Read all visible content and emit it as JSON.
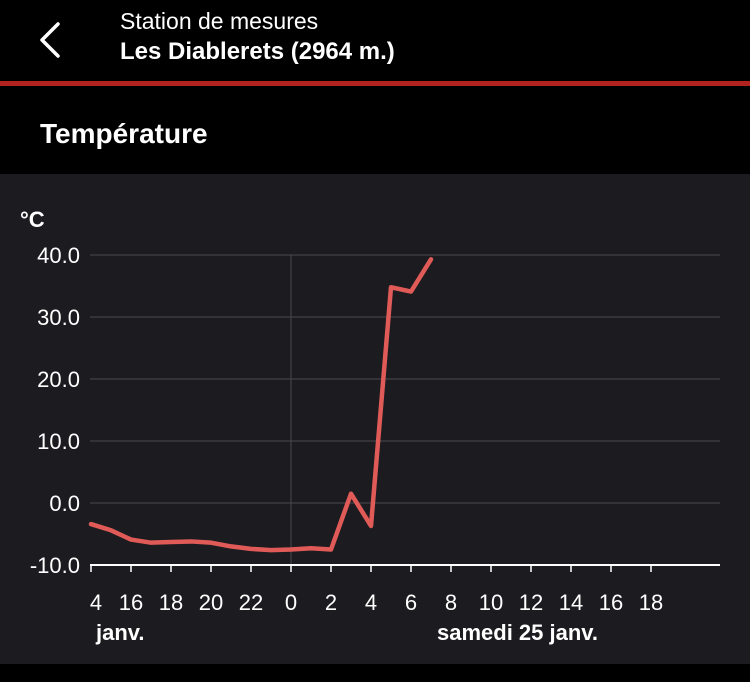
{
  "header": {
    "back_icon": "chevron-left-icon",
    "subtitle": "Station de mesures",
    "title": "Les Diablerets (2964 m.)"
  },
  "section": {
    "title": "Température"
  },
  "colors": {
    "accent": "#b2221f",
    "series": "#e05b58",
    "panel": "#1c1b1f",
    "background": "#000000"
  },
  "chart_data": {
    "type": "line",
    "title": "",
    "xlabel": "",
    "ylabel": "°C",
    "ylim": [
      -10,
      40
    ],
    "yticks": [
      "-10.0",
      "0.0",
      "10.0",
      "20.0",
      "30.0",
      "40.0"
    ],
    "grid": true,
    "x_tick_labels": [
      "4",
      "16",
      "18",
      "20",
      "22",
      "0",
      "2",
      "4",
      "6",
      "8",
      "10",
      "12",
      "14",
      "16",
      "18"
    ],
    "date_labels": [
      "janv.",
      "samedi 25 janv."
    ],
    "series": [
      {
        "x_hours": [
          -10,
          -9,
          -8,
          -7,
          -6,
          -5,
          -4,
          -3,
          -2,
          -1,
          0,
          1,
          2,
          3,
          4,
          5,
          6,
          7
        ],
        "values": [
          -3.4,
          -4.4,
          -5.9,
          -6.4,
          -6.3,
          -6.2,
          -6.4,
          -7.0,
          -7.4,
          -7.6,
          -7.5,
          -7.3,
          -7.5,
          1.5,
          -3.7,
          34.8,
          34.1,
          39.3
        ]
      }
    ]
  }
}
